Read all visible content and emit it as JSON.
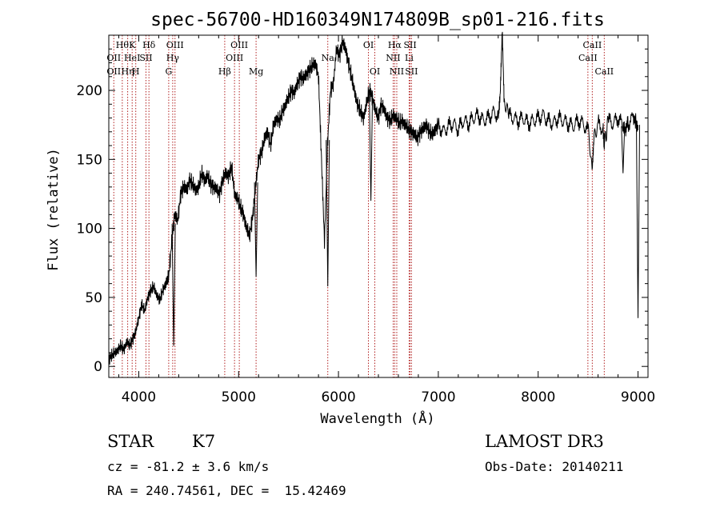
{
  "chart_data": {
    "type": "line",
    "title": "spec-56700-HD160349N174809B_sp01-216.fits",
    "xlabel": "Wavelength (Å)",
    "ylabel": "Flux (relative)",
    "xlim": [
      3700,
      9100
    ],
    "ylim": [
      -8,
      240
    ],
    "xticks": [
      4000,
      5000,
      6000,
      7000,
      8000,
      9000
    ],
    "yticks": [
      0,
      50,
      100,
      150,
      200
    ],
    "grid": false,
    "legend": "none",
    "line_color": "#000000",
    "marker_color": "#b22222",
    "series": [
      {
        "x": [
          3700,
          3730,
          3760,
          3790,
          3820,
          3850,
          3880,
          3910,
          3940,
          3970,
          4000,
          4030,
          4060,
          4090,
          4120,
          4150,
          4180,
          4210,
          4240,
          4270,
          4300,
          4330,
          4360,
          4390,
          4420,
          4450,
          4480,
          4510,
          4540,
          4570,
          4600,
          4630,
          4660,
          4690,
          4720,
          4750,
          4780,
          4810,
          4840,
          4870,
          4900,
          4930,
          4960,
          4990,
          5020,
          5050,
          5080,
          5110,
          5140,
          5170,
          5200,
          5230,
          5260,
          5290,
          5320,
          5350,
          5380,
          5410,
          5440,
          5470,
          5500,
          5530,
          5560,
          5590,
          5620,
          5650,
          5680,
          5710,
          5740,
          5770,
          5800,
          5830,
          5860,
          5890,
          5920,
          5950,
          5980,
          6010,
          6040,
          6070,
          6100,
          6130,
          6160,
          6190,
          6220,
          6250,
          6280,
          6310,
          6340,
          6370,
          6400,
          6430,
          6460,
          6490,
          6520,
          6550,
          6580,
          6610,
          6640,
          6670,
          6700,
          6730,
          6760,
          6790,
          6820,
          6850,
          6880,
          6910,
          6940,
          6970,
          7000,
          7050,
          7100,
          7150,
          7200,
          7250,
          7300,
          7350,
          7400,
          7450,
          7500,
          7550,
          7600,
          7620,
          7640,
          7660,
          7700,
          7750,
          7800,
          7850,
          7900,
          7950,
          8000,
          8050,
          8100,
          8150,
          8200,
          8250,
          8300,
          8350,
          8400,
          8450,
          8500,
          8540,
          8560,
          8600,
          8650,
          8662,
          8700,
          8750,
          8800,
          8850,
          8880,
          8900,
          8950,
          8980,
          9000
        ],
        "y": [
          5,
          8,
          10,
          12,
          15,
          12,
          18,
          15,
          20,
          25,
          35,
          45,
          40,
          50,
          55,
          58,
          52,
          48,
          55,
          60,
          65,
          90,
          110,
          105,
          125,
          130,
          128,
          135,
          132,
          128,
          130,
          140,
          135,
          138,
          132,
          130,
          128,
          125,
          135,
          140,
          138,
          145,
          125,
          122,
          115,
          110,
          100,
          95,
          108,
          130,
          150,
          155,
          165,
          170,
          160,
          175,
          180,
          178,
          185,
          190,
          195,
          200,
          198,
          205,
          210,
          208,
          212,
          215,
          218,
          220,
          210,
          150,
          90,
          160,
          200,
          205,
          230,
          225,
          235,
          230,
          220,
          210,
          200,
          190,
          185,
          180,
          190,
          200,
          195,
          185,
          180,
          190,
          185,
          180,
          178,
          182,
          180,
          176,
          178,
          175,
          172,
          170,
          168,
          165,
          170,
          172,
          175,
          170,
          168,
          172,
          175,
          170,
          174,
          176,
          172,
          178,
          176,
          180,
          182,
          178,
          180,
          184,
          182,
          200,
          245,
          190,
          182,
          180,
          178,
          180,
          176,
          178,
          180,
          182,
          178,
          176,
          180,
          178,
          176,
          174,
          178,
          176,
          170,
          140,
          168,
          176,
          172,
          160,
          178,
          176,
          180,
          174,
          170,
          176,
          180,
          178,
          175
        ]
      }
    ],
    "absorption_dips": [
      {
        "x": 4350,
        "y": 15
      },
      {
        "x": 5175,
        "y": 65
      },
      {
        "x": 5893,
        "y": 58
      },
      {
        "x": 6325,
        "y": 120
      },
      {
        "x": 8850,
        "y": 140
      },
      {
        "x": 9000,
        "y": 35
      }
    ],
    "emission_lines": [
      {
        "x": 3750,
        "labels": [
          "",
          "OII",
          "OII"
        ]
      },
      {
        "x": 3835,
        "labels": [
          "Hθ",
          "",
          ""
        ]
      },
      {
        "x": 3889,
        "labels": [
          "",
          "",
          "Hη"
        ]
      },
      {
        "x": 3934,
        "labels": [
          "K",
          "HeI",
          ""
        ]
      },
      {
        "x": 3970,
        "labels": [
          "",
          "",
          "H"
        ]
      },
      {
        "x": 4072,
        "labels": [
          "",
          "SII",
          ""
        ]
      },
      {
        "x": 4102,
        "labels": [
          "Hδ",
          "",
          ""
        ]
      },
      {
        "x": 4300,
        "labels": [
          "",
          "",
          "G"
        ]
      },
      {
        "x": 4340,
        "labels": [
          "",
          "Hγ",
          ""
        ]
      },
      {
        "x": 4363,
        "labels": [
          "OIII",
          "",
          ""
        ]
      },
      {
        "x": 4861,
        "labels": [
          "",
          "",
          "Hβ"
        ]
      },
      {
        "x": 4959,
        "labels": [
          "",
          "OIII",
          ""
        ]
      },
      {
        "x": 5007,
        "labels": [
          "OIII",
          "",
          ""
        ]
      },
      {
        "x": 5175,
        "labels": [
          "",
          "",
          "Mg"
        ]
      },
      {
        "x": 5893,
        "labels": [
          "",
          "Na",
          ""
        ]
      },
      {
        "x": 6300,
        "labels": [
          "OI",
          "",
          ""
        ]
      },
      {
        "x": 6364,
        "labels": [
          "",
          "",
          "OI"
        ]
      },
      {
        "x": 6548,
        "labels": [
          "",
          "NII",
          ""
        ]
      },
      {
        "x": 6563,
        "labels": [
          "Hα",
          "",
          ""
        ]
      },
      {
        "x": 6584,
        "labels": [
          "",
          "",
          "NII"
        ]
      },
      {
        "x": 6708,
        "labels": [
          "",
          "Li",
          ""
        ]
      },
      {
        "x": 6717,
        "labels": [
          "SII",
          "",
          ""
        ]
      },
      {
        "x": 6731,
        "labels": [
          "",
          "",
          "SII"
        ]
      },
      {
        "x": 8498,
        "labels": [
          "",
          "CaII",
          ""
        ]
      },
      {
        "x": 8542,
        "labels": [
          "CaII",
          "",
          ""
        ]
      },
      {
        "x": 8662,
        "labels": [
          "",
          "",
          "CaII"
        ]
      }
    ]
  },
  "info": {
    "class": "STAR",
    "subclass": "K7",
    "survey": "LAMOST DR3",
    "cz": "cz = -81.2 ± 3.6 km/s",
    "obs_date": "Obs-Date: 20140211",
    "coords": "RA = 240.74561, DEC =  15.42469"
  }
}
